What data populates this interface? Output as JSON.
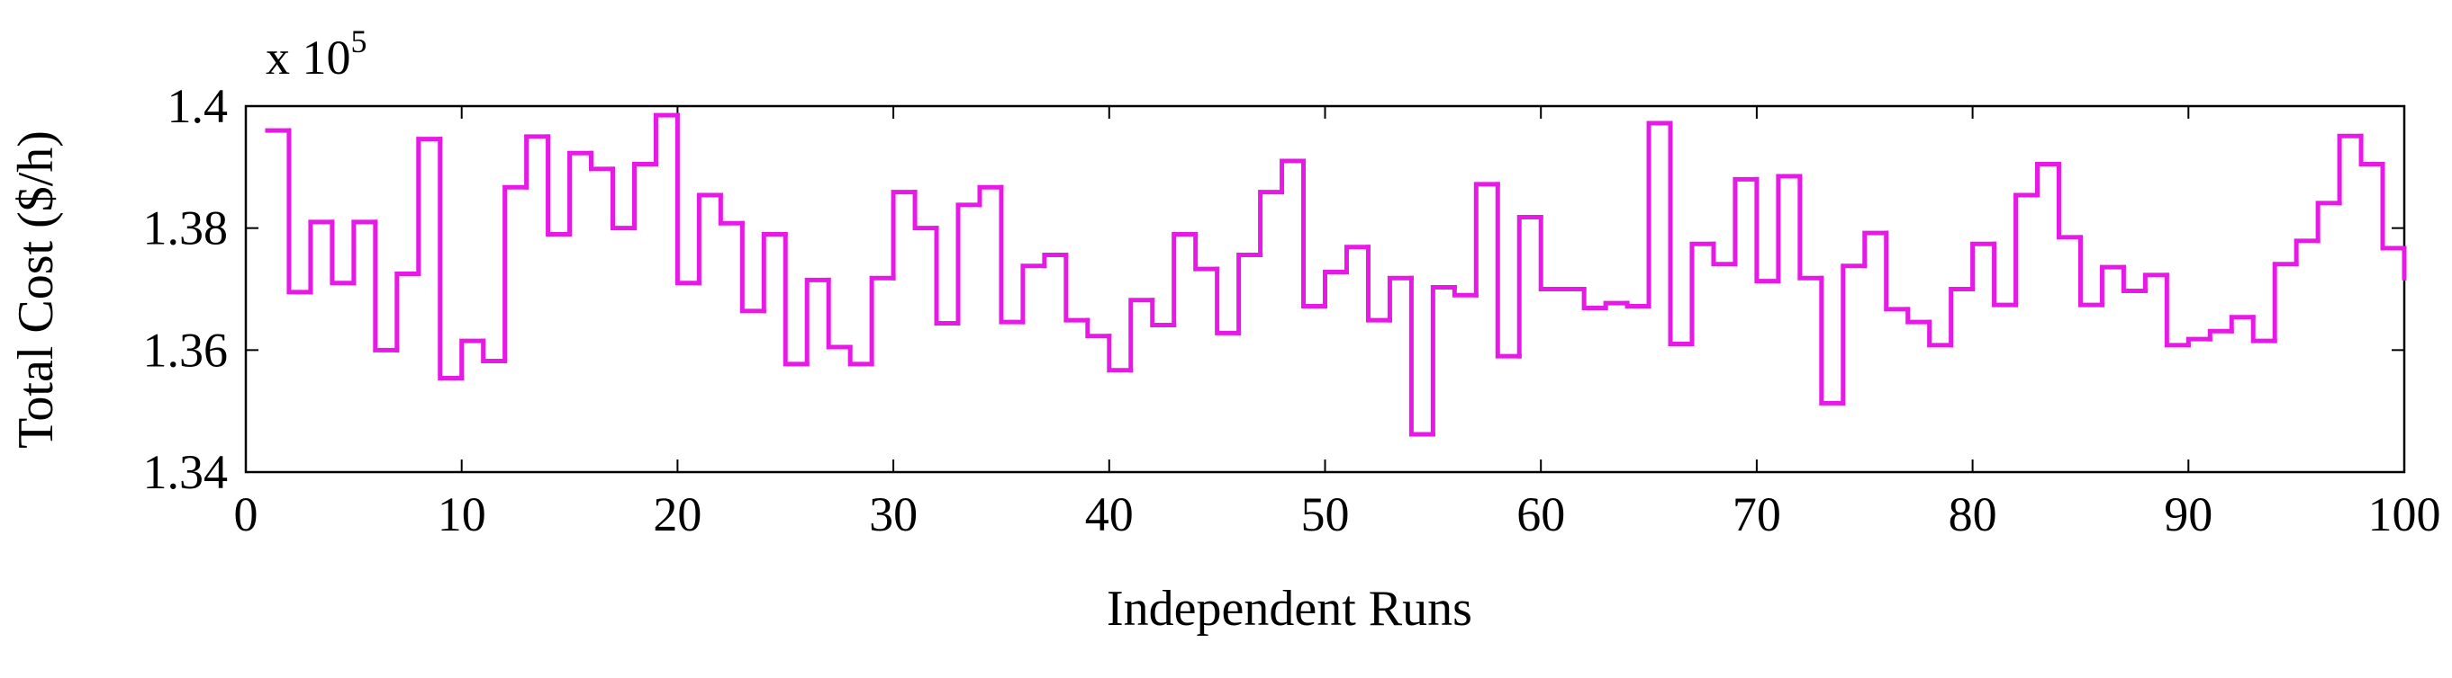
{
  "chart_data": {
    "type": "stairs",
    "x_label": "Independent Runs",
    "y_label": "Total Cost ($/h)",
    "y_multiplier": "x 10",
    "y_multiplier_exponent": "5",
    "color": "#e619e6",
    "x": [
      1,
      2,
      3,
      4,
      5,
      6,
      7,
      8,
      9,
      10,
      11,
      12,
      13,
      14,
      15,
      16,
      17,
      18,
      19,
      20,
      21,
      22,
      23,
      24,
      25,
      26,
      27,
      28,
      29,
      30,
      31,
      32,
      33,
      34,
      35,
      36,
      37,
      38,
      39,
      40,
      41,
      42,
      43,
      44,
      45,
      46,
      47,
      48,
      49,
      50,
      51,
      52,
      53,
      54,
      55,
      56,
      57,
      58,
      59,
      60,
      61,
      62,
      63,
      64,
      65,
      66,
      67,
      68,
      69,
      70,
      71,
      72,
      73,
      74,
      75,
      76,
      77,
      78,
      79,
      80,
      81,
      82,
      83,
      84,
      85,
      86,
      87,
      88,
      89,
      90,
      91,
      92,
      93,
      94,
      95,
      96,
      97,
      98,
      99,
      100
    ],
    "values": [
      1.396,
      1.3695,
      1.381,
      1.371,
      1.381,
      1.36,
      1.3725,
      1.3946,
      1.3554,
      1.3615,
      1.3582,
      1.3867,
      1.395,
      1.379,
      1.3923,
      1.3897,
      1.38,
      1.3905,
      1.3985,
      1.371,
      1.3854,
      1.3808,
      1.3664,
      1.379,
      1.3577,
      1.3715,
      1.3605,
      1.3577,
      1.3718,
      1.3859,
      1.38,
      1.3644,
      1.3838,
      1.3867,
      1.3646,
      1.3738,
      1.3756,
      1.3649,
      1.3623,
      1.3567,
      1.3682,
      1.3641,
      1.379,
      1.3733,
      1.3628,
      1.3756,
      1.3859,
      1.391,
      1.3672,
      1.3728,
      1.3769,
      1.3649,
      1.3718,
      1.3462,
      1.3703,
      1.369,
      1.3872,
      1.359,
      1.3818,
      1.37,
      1.37,
      1.3669,
      1.3677,
      1.3672,
      1.3972,
      1.361,
      1.3774,
      1.3741,
      1.388,
      1.3713,
      1.3885,
      1.3718,
      1.3513,
      1.3738,
      1.3792,
      1.3667,
      1.3646,
      1.3608,
      1.37,
      1.3774,
      1.3674,
      1.3854,
      1.3905,
      1.3785,
      1.3674,
      1.3736,
      1.3697,
      1.3723,
      1.3608,
      1.3618,
      1.3631,
      1.3654,
      1.3615,
      1.3741,
      1.3779,
      1.3841,
      1.3951,
      1.3905,
      1.3767,
      1.3718
    ],
    "xlim": [
      0,
      100
    ],
    "xticks": [
      0,
      10,
      20,
      30,
      40,
      50,
      60,
      70,
      80,
      90,
      100
    ],
    "ylim": [
      1.34,
      1.4
    ],
    "yticks": [
      1.34,
      1.36,
      1.38,
      1.4
    ]
  }
}
